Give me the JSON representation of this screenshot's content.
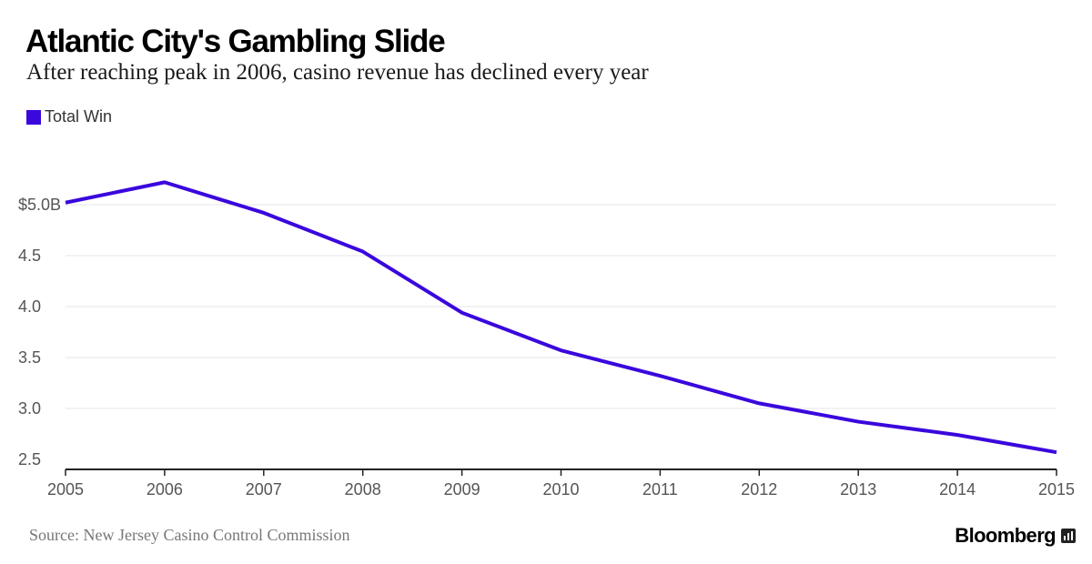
{
  "header": {
    "title": "Atlantic City's Gambling Slide",
    "subtitle": "After reaching peak in 2006, casino revenue has declined every year"
  },
  "legend": {
    "label": "Total Win",
    "color": "#3a07dd"
  },
  "footer": {
    "source": "Source: New Jersey Casino Control Commission",
    "brand": "Bloomberg",
    "brand_icon": "bloomberg-chart-icon"
  },
  "colors": {
    "line": "#3a07dd",
    "grid": "#e6e6e6",
    "axis": "#222222"
  },
  "chart_data": {
    "type": "line",
    "title": "Atlantic City's Gambling Slide",
    "subtitle": "After reaching peak in 2006, casino revenue has declined every year",
    "x": [
      2005,
      2006,
      2007,
      2008,
      2009,
      2010,
      2011,
      2012,
      2013,
      2014,
      2015
    ],
    "series": [
      {
        "name": "Total Win",
        "values": [
          5.02,
          5.22,
          4.92,
          4.54,
          3.94,
          3.57,
          3.32,
          3.05,
          2.87,
          2.74,
          2.57
        ]
      }
    ],
    "y_ticks": [
      {
        "value": 5.0,
        "label": "$5.0B"
      },
      {
        "value": 4.5,
        "label": "4.5"
      },
      {
        "value": 4.0,
        "label": "4.0"
      },
      {
        "value": 3.5,
        "label": "3.5"
      },
      {
        "value": 3.0,
        "label": "3.0"
      },
      {
        "value": 2.5,
        "label": "2.5"
      }
    ],
    "x_ticks": [
      "2005",
      "2006",
      "2007",
      "2008",
      "2009",
      "2010",
      "2011",
      "2012",
      "2013",
      "2014",
      "2015"
    ],
    "ylim": [
      2.5,
      5.0
    ],
    "xlim": [
      2005,
      2015
    ],
    "xlabel": "",
    "ylabel": "",
    "grid": true,
    "legend_position": "top-left"
  }
}
